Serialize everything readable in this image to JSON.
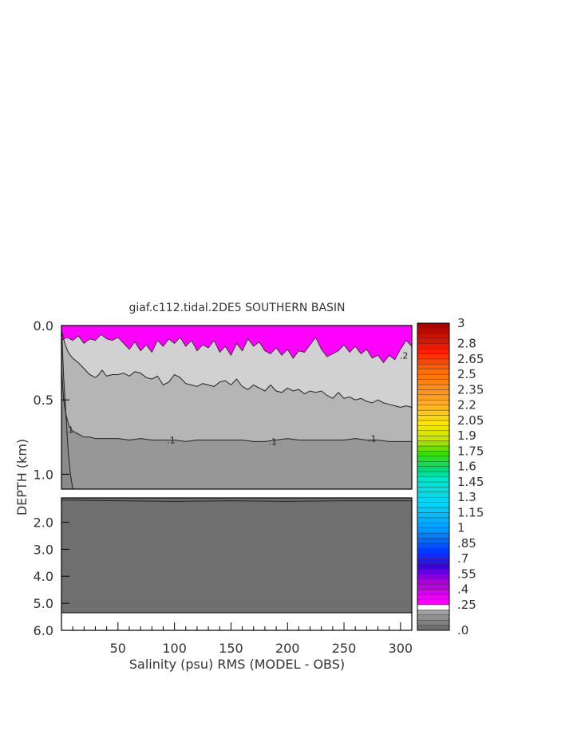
{
  "chart_data": {
    "type": "heatmap",
    "title": "giaf.c112.tidal.2DE5 SOUTHERN BASIN",
    "xlabel": "Salinity (psu) RMS (MODEL - OBS)",
    "ylabel": "DEPTH (km)",
    "xlim": [
      0,
      310
    ],
    "x_ticks": [
      "50",
      "100",
      "150",
      "200",
      "250",
      "300"
    ],
    "x_tick_values": [
      50,
      100,
      150,
      200,
      250,
      300
    ],
    "upper_panel": {
      "ylim": [
        0.0,
        1.1
      ],
      "y_ticks": [
        "0.0",
        "0.5",
        "1.0"
      ],
      "y_tick_values": [
        0.0,
        0.5,
        1.0
      ]
    },
    "lower_panel": {
      "ylim": [
        1.1,
        6.0
      ],
      "y_ticks": [
        "2.0",
        "3.0",
        "4.0",
        "5.0",
        "6.0"
      ],
      "y_tick_values": [
        2.0,
        3.0,
        4.0,
        5.0,
        6.0
      ],
      "data_bottom_depth": 5.35
    },
    "contour_labels": [
      {
        "text": ".1",
        "x": 7,
        "depth": 0.7
      },
      {
        "text": ".1",
        "x": 97,
        "depth": 0.77
      },
      {
        "text": ".1",
        "x": 187,
        "depth": 0.78
      },
      {
        "text": ".1",
        "x": 275,
        "depth": 0.76
      },
      {
        "text": ".2",
        "x": 303,
        "depth": 0.2
      }
    ],
    "colorbar": {
      "labels": [
        "3",
        "2.8",
        "2.65",
        "2.5",
        "2.35",
        "2.2",
        "2.05",
        "1.9",
        "1.75",
        "1.6",
        "1.45",
        "1.3",
        "1.15",
        "1",
        ".85",
        ".7",
        ".55",
        ".4",
        ".25",
        ".0"
      ],
      "min": 0.0,
      "max": 3.0
    },
    "fields": {
      "magenta_above_0_25_bottom": [
        [
          0,
          0.1
        ],
        [
          5,
          0.08
        ],
        [
          10,
          0.1
        ],
        [
          15,
          0.07
        ],
        [
          20,
          0.12
        ],
        [
          25,
          0.09
        ],
        [
          30,
          0.1
        ],
        [
          35,
          0.06
        ],
        [
          40,
          0.09
        ],
        [
          45,
          0.1
        ],
        [
          50,
          0.08
        ],
        [
          55,
          0.12
        ],
        [
          60,
          0.16
        ],
        [
          65,
          0.11
        ],
        [
          70,
          0.17
        ],
        [
          75,
          0.13
        ],
        [
          80,
          0.18
        ],
        [
          85,
          0.1
        ],
        [
          90,
          0.14
        ],
        [
          95,
          0.09
        ],
        [
          100,
          0.12
        ],
        [
          105,
          0.08
        ],
        [
          110,
          0.14
        ],
        [
          115,
          0.1
        ],
        [
          120,
          0.17
        ],
        [
          125,
          0.13
        ],
        [
          130,
          0.15
        ],
        [
          135,
          0.1
        ],
        [
          140,
          0.18
        ],
        [
          145,
          0.14
        ],
        [
          150,
          0.2
        ],
        [
          155,
          0.12
        ],
        [
          160,
          0.17
        ],
        [
          165,
          0.09
        ],
        [
          170,
          0.14
        ],
        [
          175,
          0.11
        ],
        [
          180,
          0.17
        ],
        [
          185,
          0.19
        ],
        [
          190,
          0.15
        ],
        [
          195,
          0.2
        ],
        [
          200,
          0.16
        ],
        [
          205,
          0.22
        ],
        [
          210,
          0.17
        ],
        [
          215,
          0.18
        ],
        [
          220,
          0.13
        ],
        [
          225,
          0.08
        ],
        [
          230,
          0.16
        ],
        [
          235,
          0.21
        ],
        [
          240,
          0.19
        ],
        [
          245,
          0.17
        ],
        [
          250,
          0.13
        ],
        [
          255,
          0.18
        ],
        [
          260,
          0.14
        ],
        [
          265,
          0.19
        ],
        [
          270,
          0.16
        ],
        [
          275,
          0.22
        ],
        [
          280,
          0.2
        ],
        [
          285,
          0.25
        ],
        [
          290,
          0.2
        ],
        [
          295,
          0.23
        ],
        [
          300,
          0.16
        ],
        [
          305,
          0.1
        ],
        [
          310,
          0.14
        ]
      ],
      "contour_0_2": [
        [
          0,
          0.03
        ],
        [
          3,
          0.12
        ],
        [
          6,
          0.18
        ],
        [
          10,
          0.22
        ],
        [
          15,
          0.25
        ],
        [
          20,
          0.29
        ],
        [
          25,
          0.33
        ],
        [
          30,
          0.35
        ],
        [
          33,
          0.33
        ],
        [
          36,
          0.3
        ],
        [
          40,
          0.34
        ],
        [
          45,
          0.33
        ],
        [
          50,
          0.33
        ],
        [
          55,
          0.32
        ],
        [
          60,
          0.34
        ],
        [
          65,
          0.31
        ],
        [
          70,
          0.32
        ],
        [
          75,
          0.35
        ],
        [
          80,
          0.36
        ],
        [
          85,
          0.34
        ],
        [
          90,
          0.4
        ],
        [
          95,
          0.38
        ],
        [
          100,
          0.33
        ],
        [
          105,
          0.35
        ],
        [
          110,
          0.39
        ],
        [
          115,
          0.4
        ],
        [
          120,
          0.41
        ],
        [
          125,
          0.39
        ],
        [
          130,
          0.4
        ],
        [
          135,
          0.41
        ],
        [
          140,
          0.38
        ],
        [
          145,
          0.37
        ],
        [
          150,
          0.4
        ],
        [
          155,
          0.36
        ],
        [
          160,
          0.41
        ],
        [
          165,
          0.43
        ],
        [
          170,
          0.4
        ],
        [
          175,
          0.42
        ],
        [
          180,
          0.44
        ],
        [
          185,
          0.4
        ],
        [
          190,
          0.44
        ],
        [
          195,
          0.45
        ],
        [
          200,
          0.42
        ],
        [
          205,
          0.44
        ],
        [
          210,
          0.43
        ],
        [
          215,
          0.46
        ],
        [
          220,
          0.44
        ],
        [
          225,
          0.45
        ],
        [
          230,
          0.44
        ],
        [
          235,
          0.47
        ],
        [
          240,
          0.49
        ],
        [
          245,
          0.45
        ],
        [
          250,
          0.49
        ],
        [
          255,
          0.48
        ],
        [
          260,
          0.5
        ],
        [
          265,
          0.49
        ],
        [
          270,
          0.51
        ],
        [
          275,
          0.52
        ],
        [
          280,
          0.5
        ],
        [
          285,
          0.52
        ],
        [
          290,
          0.53
        ],
        [
          295,
          0.54
        ],
        [
          300,
          0.55
        ],
        [
          305,
          0.54
        ],
        [
          310,
          0.55
        ]
      ],
      "contour_0_1": [
        [
          0,
          0.3
        ],
        [
          2,
          0.5
        ],
        [
          4,
          0.6
        ],
        [
          7,
          0.68
        ],
        [
          10,
          0.71
        ],
        [
          15,
          0.73
        ],
        [
          20,
          0.75
        ],
        [
          25,
          0.75
        ],
        [
          30,
          0.76
        ],
        [
          40,
          0.76
        ],
        [
          50,
          0.76
        ],
        [
          60,
          0.77
        ],
        [
          70,
          0.76
        ],
        [
          80,
          0.77
        ],
        [
          90,
          0.77
        ],
        [
          100,
          0.77
        ],
        [
          110,
          0.78
        ],
        [
          120,
          0.77
        ],
        [
          130,
          0.77
        ],
        [
          140,
          0.77
        ],
        [
          150,
          0.77
        ],
        [
          160,
          0.77
        ],
        [
          170,
          0.78
        ],
        [
          180,
          0.78
        ],
        [
          190,
          0.77
        ],
        [
          200,
          0.76
        ],
        [
          210,
          0.77
        ],
        [
          220,
          0.77
        ],
        [
          230,
          0.77
        ],
        [
          240,
          0.77
        ],
        [
          250,
          0.77
        ],
        [
          260,
          0.76
        ],
        [
          270,
          0.77
        ],
        [
          280,
          0.77
        ],
        [
          290,
          0.78
        ],
        [
          300,
          0.78
        ],
        [
          310,
          0.78
        ]
      ],
      "contour_0_05": [
        [
          0,
          0.0
        ],
        [
          2,
          0.35
        ],
        [
          4,
          0.6
        ],
        [
          6,
          0.85
        ],
        [
          8,
          1.0
        ],
        [
          10,
          1.1
        ]
      ],
      "deep_contour": [
        [
          0,
          1.11
        ],
        [
          50,
          1.12
        ],
        [
          100,
          1.13
        ],
        [
          150,
          1.12
        ],
        [
          200,
          1.13
        ],
        [
          250,
          1.12
        ],
        [
          310,
          1.12
        ]
      ]
    }
  }
}
